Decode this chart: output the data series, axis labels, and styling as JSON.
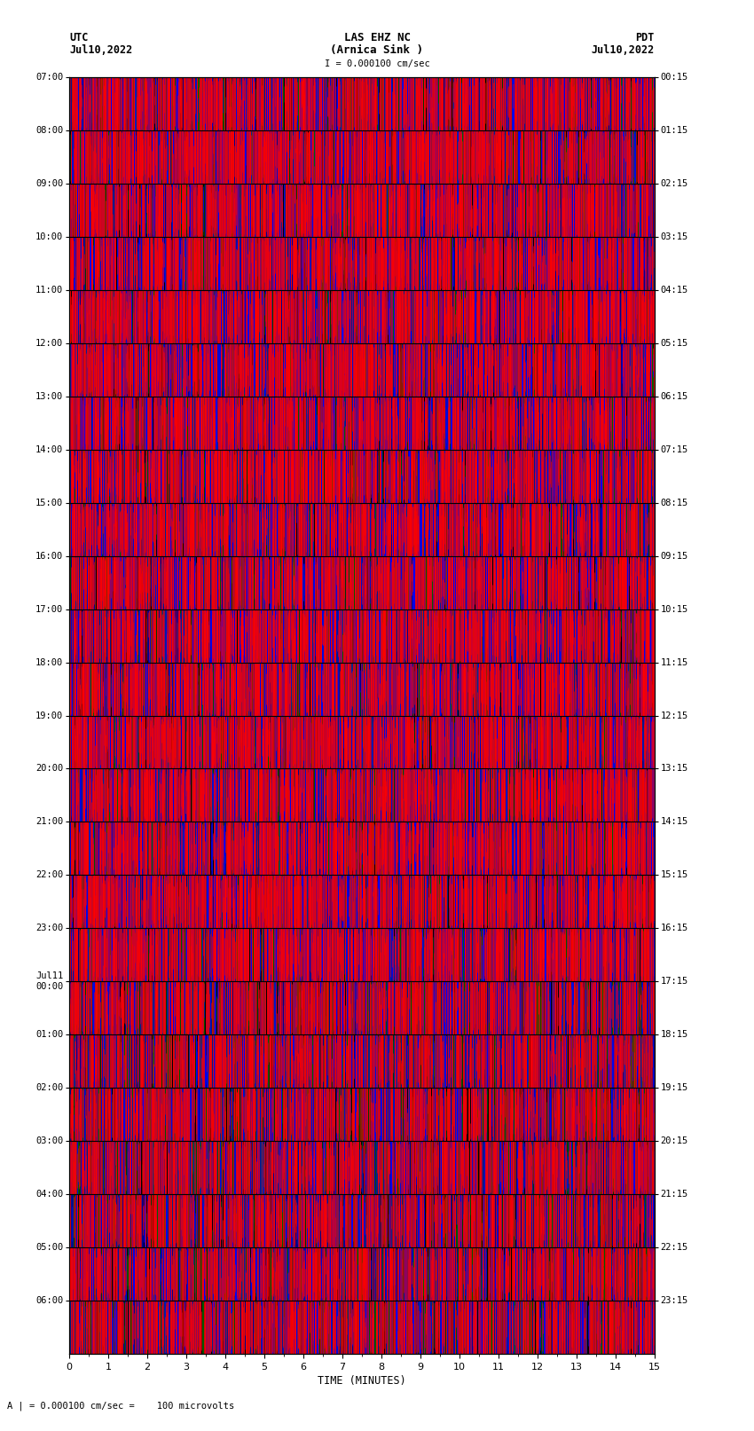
{
  "title_line1": "LAS EHZ NC",
  "title_line2": "(Arnica Sink )",
  "scale_text": "I = 0.000100 cm/sec",
  "footer_text": "A | = 0.000100 cm/sec =    100 microvolts",
  "utc_label": "UTC",
  "utc_date": "Jul10,2022",
  "pdt_label": "PDT",
  "pdt_date": "Jul10,2022",
  "xlabel": "TIME (MINUTES)",
  "left_times": [
    "07:00",
    "08:00",
    "09:00",
    "10:00",
    "11:00",
    "12:00",
    "13:00",
    "14:00",
    "15:00",
    "16:00",
    "17:00",
    "18:00",
    "19:00",
    "20:00",
    "21:00",
    "22:00",
    "23:00",
    "Jul11\n00:00",
    "01:00",
    "02:00",
    "03:00",
    "04:00",
    "05:00",
    "06:00"
  ],
  "right_times": [
    "00:15",
    "01:15",
    "02:15",
    "03:15",
    "04:15",
    "05:15",
    "06:15",
    "07:15",
    "08:15",
    "09:15",
    "10:15",
    "11:15",
    "12:15",
    "13:15",
    "14:15",
    "15:15",
    "16:15",
    "17:15",
    "18:15",
    "19:15",
    "20:15",
    "21:15",
    "22:15",
    "23:15"
  ],
  "x_ticks": [
    0,
    1,
    2,
    3,
    4,
    5,
    6,
    7,
    8,
    9,
    10,
    11,
    12,
    13,
    14,
    15
  ],
  "num_rows": 24,
  "display_minutes": 15,
  "background_color": "#ffffff",
  "plot_bg": "#000000",
  "seed": 42,
  "color_red": "#ff0000",
  "color_blue": "#0000ff",
  "color_green": "#006600",
  "color_black": "#000000",
  "n_lines_per_row": 5000
}
